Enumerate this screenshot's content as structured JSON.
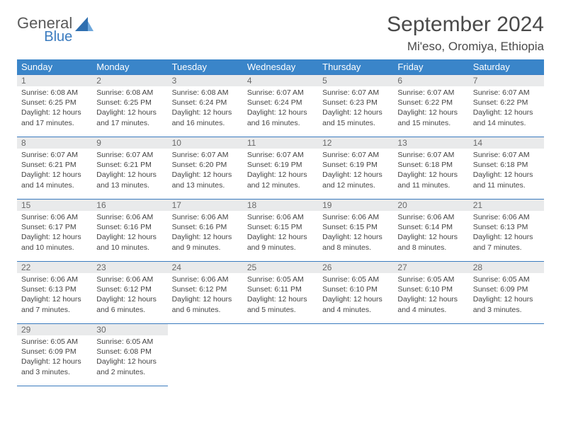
{
  "brand": {
    "general": "General",
    "blue": "Blue"
  },
  "title": "September 2024",
  "location": "Mi'eso, Oromiya, Ethiopia",
  "colors": {
    "header_bg": "#3a85c9",
    "header_fg": "#ffffff",
    "rule": "#3a7bbf",
    "daynum_bg": "#e9eaeb",
    "daynum_fg": "#6a6a6a",
    "body_text": "#444444",
    "logo_gray": "#5a5a5a",
    "logo_blue": "#3a7bbf",
    "page_bg": "#ffffff"
  },
  "typography": {
    "title_size_pt": 22,
    "location_size_pt": 13,
    "th_size_pt": 10,
    "cell_size_pt": 8,
    "daynum_size_pt": 9
  },
  "weekdays": [
    "Sunday",
    "Monday",
    "Tuesday",
    "Wednesday",
    "Thursday",
    "Friday",
    "Saturday"
  ],
  "days": {
    "1": {
      "sunrise": "Sunrise: 6:08 AM",
      "sunset": "Sunset: 6:25 PM",
      "daylight": "Daylight: 12 hours and 17 minutes."
    },
    "2": {
      "sunrise": "Sunrise: 6:08 AM",
      "sunset": "Sunset: 6:25 PM",
      "daylight": "Daylight: 12 hours and 17 minutes."
    },
    "3": {
      "sunrise": "Sunrise: 6:08 AM",
      "sunset": "Sunset: 6:24 PM",
      "daylight": "Daylight: 12 hours and 16 minutes."
    },
    "4": {
      "sunrise": "Sunrise: 6:07 AM",
      "sunset": "Sunset: 6:24 PM",
      "daylight": "Daylight: 12 hours and 16 minutes."
    },
    "5": {
      "sunrise": "Sunrise: 6:07 AM",
      "sunset": "Sunset: 6:23 PM",
      "daylight": "Daylight: 12 hours and 15 minutes."
    },
    "6": {
      "sunrise": "Sunrise: 6:07 AM",
      "sunset": "Sunset: 6:22 PM",
      "daylight": "Daylight: 12 hours and 15 minutes."
    },
    "7": {
      "sunrise": "Sunrise: 6:07 AM",
      "sunset": "Sunset: 6:22 PM",
      "daylight": "Daylight: 12 hours and 14 minutes."
    },
    "8": {
      "sunrise": "Sunrise: 6:07 AM",
      "sunset": "Sunset: 6:21 PM",
      "daylight": "Daylight: 12 hours and 14 minutes."
    },
    "9": {
      "sunrise": "Sunrise: 6:07 AM",
      "sunset": "Sunset: 6:21 PM",
      "daylight": "Daylight: 12 hours and 13 minutes."
    },
    "10": {
      "sunrise": "Sunrise: 6:07 AM",
      "sunset": "Sunset: 6:20 PM",
      "daylight": "Daylight: 12 hours and 13 minutes."
    },
    "11": {
      "sunrise": "Sunrise: 6:07 AM",
      "sunset": "Sunset: 6:19 PM",
      "daylight": "Daylight: 12 hours and 12 minutes."
    },
    "12": {
      "sunrise": "Sunrise: 6:07 AM",
      "sunset": "Sunset: 6:19 PM",
      "daylight": "Daylight: 12 hours and 12 minutes."
    },
    "13": {
      "sunrise": "Sunrise: 6:07 AM",
      "sunset": "Sunset: 6:18 PM",
      "daylight": "Daylight: 12 hours and 11 minutes."
    },
    "14": {
      "sunrise": "Sunrise: 6:07 AM",
      "sunset": "Sunset: 6:18 PM",
      "daylight": "Daylight: 12 hours and 11 minutes."
    },
    "15": {
      "sunrise": "Sunrise: 6:06 AM",
      "sunset": "Sunset: 6:17 PM",
      "daylight": "Daylight: 12 hours and 10 minutes."
    },
    "16": {
      "sunrise": "Sunrise: 6:06 AM",
      "sunset": "Sunset: 6:16 PM",
      "daylight": "Daylight: 12 hours and 10 minutes."
    },
    "17": {
      "sunrise": "Sunrise: 6:06 AM",
      "sunset": "Sunset: 6:16 PM",
      "daylight": "Daylight: 12 hours and 9 minutes."
    },
    "18": {
      "sunrise": "Sunrise: 6:06 AM",
      "sunset": "Sunset: 6:15 PM",
      "daylight": "Daylight: 12 hours and 9 minutes."
    },
    "19": {
      "sunrise": "Sunrise: 6:06 AM",
      "sunset": "Sunset: 6:15 PM",
      "daylight": "Daylight: 12 hours and 8 minutes."
    },
    "20": {
      "sunrise": "Sunrise: 6:06 AM",
      "sunset": "Sunset: 6:14 PM",
      "daylight": "Daylight: 12 hours and 8 minutes."
    },
    "21": {
      "sunrise": "Sunrise: 6:06 AM",
      "sunset": "Sunset: 6:13 PM",
      "daylight": "Daylight: 12 hours and 7 minutes."
    },
    "22": {
      "sunrise": "Sunrise: 6:06 AM",
      "sunset": "Sunset: 6:13 PM",
      "daylight": "Daylight: 12 hours and 7 minutes."
    },
    "23": {
      "sunrise": "Sunrise: 6:06 AM",
      "sunset": "Sunset: 6:12 PM",
      "daylight": "Daylight: 12 hours and 6 minutes."
    },
    "24": {
      "sunrise": "Sunrise: 6:06 AM",
      "sunset": "Sunset: 6:12 PM",
      "daylight": "Daylight: 12 hours and 6 minutes."
    },
    "25": {
      "sunrise": "Sunrise: 6:05 AM",
      "sunset": "Sunset: 6:11 PM",
      "daylight": "Daylight: 12 hours and 5 minutes."
    },
    "26": {
      "sunrise": "Sunrise: 6:05 AM",
      "sunset": "Sunset: 6:10 PM",
      "daylight": "Daylight: 12 hours and 4 minutes."
    },
    "27": {
      "sunrise": "Sunrise: 6:05 AM",
      "sunset": "Sunset: 6:10 PM",
      "daylight": "Daylight: 12 hours and 4 minutes."
    },
    "28": {
      "sunrise": "Sunrise: 6:05 AM",
      "sunset": "Sunset: 6:09 PM",
      "daylight": "Daylight: 12 hours and 3 minutes."
    },
    "29": {
      "sunrise": "Sunrise: 6:05 AM",
      "sunset": "Sunset: 6:09 PM",
      "daylight": "Daylight: 12 hours and 3 minutes."
    },
    "30": {
      "sunrise": "Sunrise: 6:05 AM",
      "sunset": "Sunset: 6:08 PM",
      "daylight": "Daylight: 12 hours and 2 minutes."
    }
  },
  "grid": {
    "first_weekday_index": 0,
    "num_days": 30,
    "weeks": [
      [
        1,
        2,
        3,
        4,
        5,
        6,
        7
      ],
      [
        8,
        9,
        10,
        11,
        12,
        13,
        14
      ],
      [
        15,
        16,
        17,
        18,
        19,
        20,
        21
      ],
      [
        22,
        23,
        24,
        25,
        26,
        27,
        28
      ],
      [
        29,
        30,
        null,
        null,
        null,
        null,
        null
      ]
    ]
  }
}
